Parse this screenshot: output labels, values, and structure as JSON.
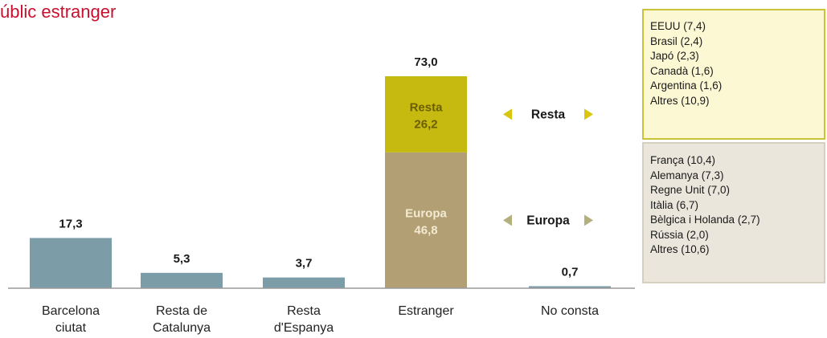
{
  "title": "úblic estranger",
  "colors": {
    "title": "#c8102e",
    "bar": "#7c9ca8",
    "resta": "#c6b90f",
    "europa": "#b39f74",
    "resta_label": "#6b5f00",
    "arrow_resta": "#d8c60f",
    "arrow_europa": "#b3b07e"
  },
  "chart_data": {
    "type": "bar",
    "categories": [
      [
        "Barcelona",
        "ciutat"
      ],
      [
        "Resta de",
        "Catalunya"
      ],
      [
        "Resta",
        "d'Espanya"
      ],
      [
        "Estranger"
      ],
      [
        "No consta"
      ]
    ],
    "values": [
      17.3,
      5.3,
      3.7,
      73.0,
      0.7
    ],
    "value_labels": [
      "17,3",
      "5,3",
      "3,7",
      "73,0",
      "0,7"
    ],
    "stacked_category": "Estranger",
    "stack": [
      {
        "name": "Europa",
        "value": 46.8,
        "label": "46,8"
      },
      {
        "name": "Resta",
        "value": 26.2,
        "label": "26,2"
      }
    ],
    "ylim": [
      0,
      73
    ],
    "grid": false
  },
  "legend_arrows": [
    {
      "label": "Resta",
      "color_key": "arrow_resta"
    },
    {
      "label": "Europa",
      "color_key": "arrow_europa"
    }
  ],
  "resta_box": {
    "items": [
      "EEUU (7,4)",
      "Brasil (2,4)",
      "Japó (2,3)",
      "Canadà (1,6)",
      "Argentina (1,6)",
      "Altres (10,9)"
    ]
  },
  "europa_box": {
    "items": [
      "França (10,4)",
      "Alemanya (7,3)",
      "Regne Unit (7,0)",
      "Itàlia (6,7)",
      "Bèlgica i Holanda (2,7)",
      "Rússia (2,0)",
      "Altres (10,6)"
    ]
  }
}
